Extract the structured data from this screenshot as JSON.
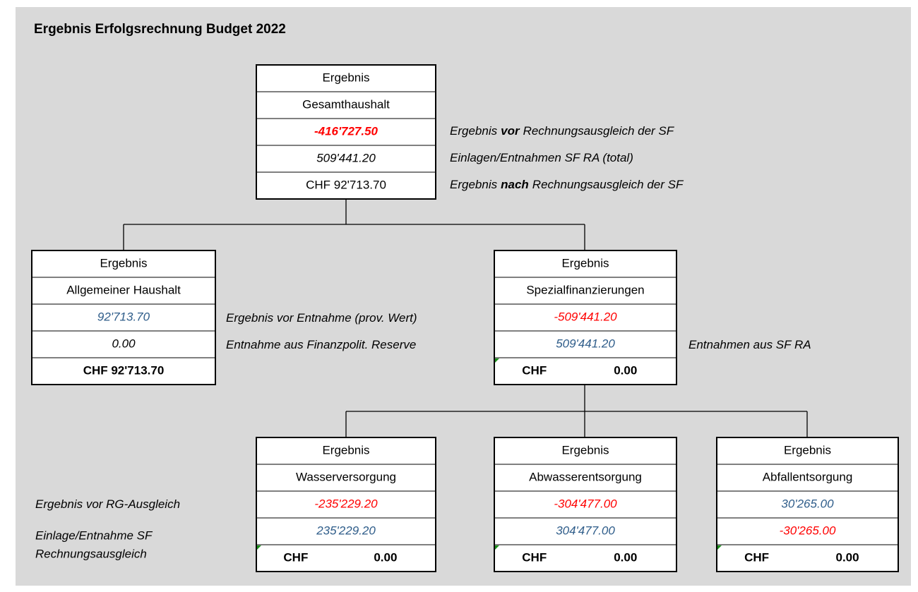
{
  "title": "Ergebnis Erfolgsrechnung Budget 2022",
  "boxes": [
    {
      "rows": [
        "Ergebnis",
        "Gesamthaushalt",
        "-416'727.50",
        "509'441.20",
        "CHF 92'713.70"
      ]
    },
    {
      "rows": [
        "Ergebnis",
        "Allgemeiner Haushalt",
        "92'713.70",
        "0.00",
        "CHF 92'713.70"
      ]
    },
    {
      "rows": [
        "Ergebnis",
        "Spezialfinanzierungen",
        "-509'441.20",
        "509'441.20",
        {
          "currency": "CHF",
          "amount": "0.00"
        }
      ]
    },
    {
      "rows": [
        "Ergebnis",
        "Wasserversorgung",
        "-235'229.20",
        "235'229.20",
        {
          "currency": "CHF",
          "amount": "0.00"
        }
      ]
    },
    {
      "rows": [
        "Ergebnis",
        "Abwasserentsorgung",
        "-304'477.00",
        "304'477.00",
        {
          "currency": "CHF",
          "amount": "0.00"
        }
      ]
    },
    {
      "rows": [
        "Ergebnis",
        "Abfallentsorgung",
        "30'265.00",
        "-30'265.00",
        {
          "currency": "CHF",
          "amount": "0.00"
        }
      ]
    }
  ],
  "notes": [
    {
      "parts": [
        "Ergebnis",
        "vor",
        "Rechnungsausgleich der SF"
      ]
    },
    {
      "parts": [
        "Einlagen/Entnahmen SF RA (total)"
      ]
    },
    {
      "parts": [
        "Ergebnis",
        "nach",
        "Rechnungsausgleich der SF"
      ]
    },
    {
      "parts": [
        "Ergebnis vor Entnahme (prov. Wert)"
      ]
    },
    {
      "parts": [
        "Entnahme aus Finanzpolit. Reserve"
      ]
    },
    {
      "parts": [
        "Entnahmen aus SF RA"
      ]
    },
    {
      "parts": [
        "Ergebnis vor RG-Ausgleich"
      ]
    },
    {
      "parts": [
        "Einlage/Entnahme SF",
        "Rechnungsausgleich"
      ]
    }
  ]
}
